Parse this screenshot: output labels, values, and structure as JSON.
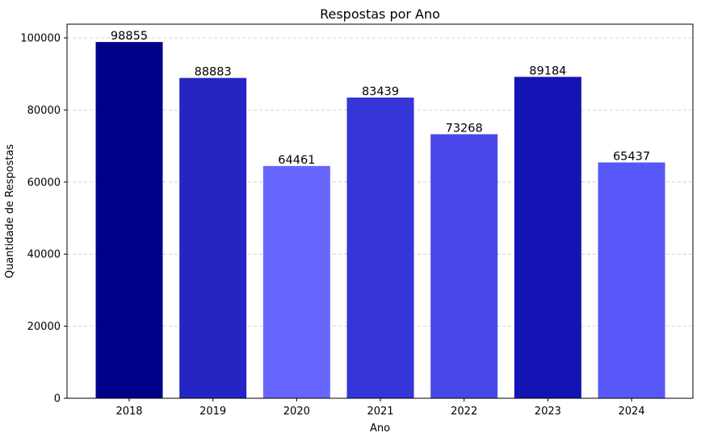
{
  "chart_data": {
    "type": "bar",
    "title": "Respostas por Ano",
    "xlabel": "Ano",
    "ylabel": "Quantidade de Respostas",
    "categories": [
      "2018",
      "2019",
      "2020",
      "2021",
      "2022",
      "2023",
      "2024"
    ],
    "values": [
      98855,
      88883,
      64461,
      83439,
      73268,
      89184,
      65437
    ],
    "data_labels": [
      "98855",
      "88883",
      "64461",
      "83439",
      "73268",
      "89184",
      "65437"
    ],
    "bar_colors": [
      "#00008b",
      "#2525c4",
      "#6666ff",
      "#3535d8",
      "#4848e8",
      "#1414b4",
      "#5858f8"
    ],
    "ylim": [
      0,
      103800
    ],
    "y_ticks": [
      0,
      20000,
      40000,
      60000,
      80000,
      100000
    ],
    "y_tick_labels": [
      "0",
      "20000",
      "40000",
      "60000",
      "80000",
      "100000"
    ],
    "grid": "y-dashed",
    "legend": "none"
  }
}
